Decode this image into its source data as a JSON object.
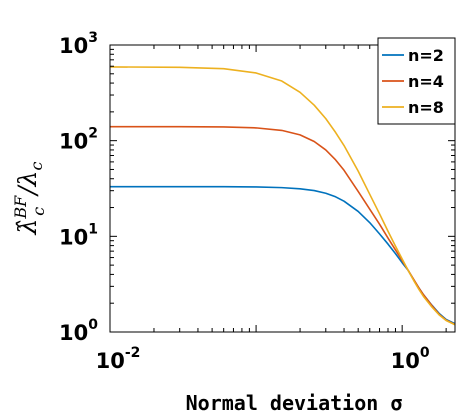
{
  "chart_data": {
    "type": "line",
    "xlabel": "Normal deviation σ",
    "ylabel": {
      "text": "λ̂",
      "sup": "BF",
      "sub": "c",
      "rest": "/λ",
      "rest_sub": "c"
    },
    "x_scale": "log",
    "y_scale": "log",
    "xlim": [
      0.01,
      2.3
    ],
    "ylim": [
      1,
      1000
    ],
    "grid": false,
    "legend_position": "top-right",
    "x_ticks": [
      {
        "value": 0.01,
        "base": "10",
        "exp": "-2"
      },
      {
        "value": 1,
        "base": "10",
        "exp": "0"
      }
    ],
    "y_ticks": [
      {
        "value": 1,
        "base": "10",
        "exp": "0"
      },
      {
        "value": 10,
        "base": "10",
        "exp": "1"
      },
      {
        "value": 100,
        "base": "10",
        "exp": "2"
      },
      {
        "value": 1000,
        "base": "10",
        "exp": "3"
      }
    ],
    "series": [
      {
        "name": "n=2",
        "color": "#0072BD",
        "x": [
          0.01,
          0.03,
          0.06,
          0.1,
          0.15,
          0.2,
          0.25,
          0.3,
          0.35,
          0.4,
          0.5,
          0.6,
          0.7,
          0.8,
          0.9,
          1.0,
          1.1,
          1.2,
          1.3,
          1.4,
          1.6,
          1.8,
          2.0,
          2.3
        ],
        "y": [
          33,
          33,
          33,
          32.8,
          32.3,
          31.4,
          30.1,
          28.2,
          25.9,
          23.3,
          18.2,
          13.9,
          10.6,
          8.3,
          6.6,
          5.3,
          4.4,
          3.5,
          2.9,
          2.45,
          1.9,
          1.55,
          1.35,
          1.22
        ]
      },
      {
        "name": "n=4",
        "color": "#D95319",
        "x": [
          0.01,
          0.03,
          0.06,
          0.1,
          0.15,
          0.2,
          0.25,
          0.3,
          0.35,
          0.4,
          0.5,
          0.6,
          0.7,
          0.8,
          0.9,
          1.0,
          1.1,
          1.2,
          1.3,
          1.4,
          1.6,
          1.8,
          2.0,
          2.3
        ],
        "y": [
          140,
          140,
          139,
          136,
          128,
          115,
          98,
          80,
          63,
          49,
          29.5,
          19.2,
          13.4,
          9.6,
          7.2,
          5.6,
          4.4,
          3.55,
          2.9,
          2.45,
          1.88,
          1.52,
          1.33,
          1.2
        ]
      },
      {
        "name": "n=8",
        "color": "#EDB120",
        "x": [
          0.01,
          0.03,
          0.06,
          0.1,
          0.15,
          0.2,
          0.25,
          0.3,
          0.35,
          0.4,
          0.5,
          0.6,
          0.7,
          0.8,
          0.9,
          1.0,
          1.1,
          1.2,
          1.3,
          1.4,
          1.6,
          1.8,
          2.0,
          2.3
        ],
        "y": [
          590,
          585,
          565,
          510,
          420,
          320,
          235,
          170,
          122,
          89,
          48,
          27.5,
          17.2,
          11.3,
          7.9,
          5.8,
          4.4,
          3.45,
          2.8,
          2.35,
          1.82,
          1.5,
          1.32,
          1.19
        ]
      }
    ]
  }
}
